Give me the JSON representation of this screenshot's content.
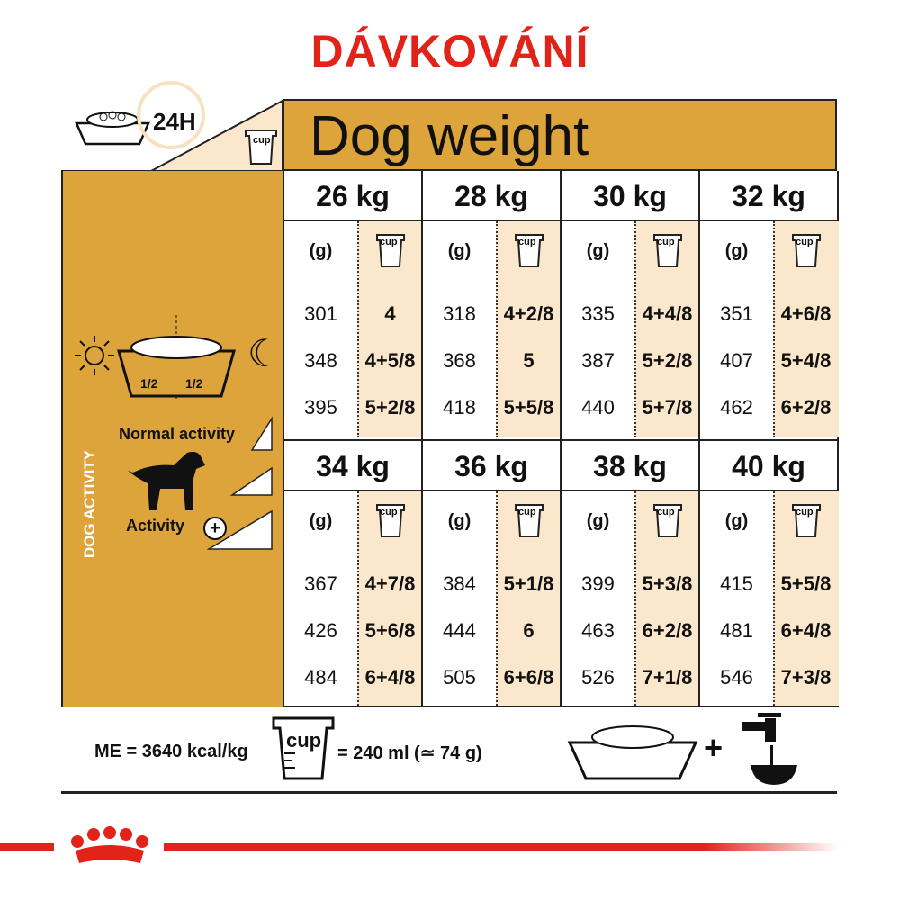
{
  "title": "DÁVKOVÁNÍ",
  "top_left": {
    "label": "24H",
    "cup_label": "cup"
  },
  "header": {
    "title": "Dog weight"
  },
  "activity": {
    "vertical_label": "DOG ACTIVITY",
    "normal": "Normal activity",
    "activity": "Activity",
    "half": "1/2"
  },
  "units": {
    "grams": "(g)",
    "cup": "cup"
  },
  "weights": [
    {
      "label": "26 kg",
      "rows": [
        [
          "301",
          "4"
        ],
        [
          "348",
          "4+5/8"
        ],
        [
          "395",
          "5+2/8"
        ]
      ]
    },
    {
      "label": "28 kg",
      "rows": [
        [
          "318",
          "4+2/8"
        ],
        [
          "368",
          "5"
        ],
        [
          "418",
          "5+5/8"
        ]
      ]
    },
    {
      "label": "30 kg",
      "rows": [
        [
          "335",
          "4+4/8"
        ],
        [
          "387",
          "5+2/8"
        ],
        [
          "440",
          "5+7/8"
        ]
      ]
    },
    {
      "label": "32 kg",
      "rows": [
        [
          "351",
          "4+6/8"
        ],
        [
          "407",
          "5+4/8"
        ],
        [
          "462",
          "6+2/8"
        ]
      ]
    },
    {
      "label": "34 kg",
      "rows": [
        [
          "367",
          "4+7/8"
        ],
        [
          "426",
          "5+6/8"
        ],
        [
          "484",
          "6+4/8"
        ]
      ]
    },
    {
      "label": "36 kg",
      "rows": [
        [
          "384",
          "5+1/8"
        ],
        [
          "444",
          "6"
        ],
        [
          "505",
          "6+6/8"
        ]
      ]
    },
    {
      "label": "38 kg",
      "rows": [
        [
          "399",
          "5+3/8"
        ],
        [
          "463",
          "6+2/8"
        ],
        [
          "526",
          "7+1/8"
        ]
      ]
    },
    {
      "label": "40 kg",
      "rows": [
        [
          "415",
          "5+5/8"
        ],
        [
          "481",
          "6+4/8"
        ],
        [
          "546",
          "7+3/8"
        ]
      ]
    }
  ],
  "footer": {
    "energy": "ME = 3640 kcal/kg",
    "cup": "cup",
    "cup_equiv": "= 240 ml (≃ 74 g)",
    "plus": "+"
  },
  "colors": {
    "brand_red": "#e2231a",
    "gold": "#dea43c",
    "cream": "#fbe8cc"
  }
}
